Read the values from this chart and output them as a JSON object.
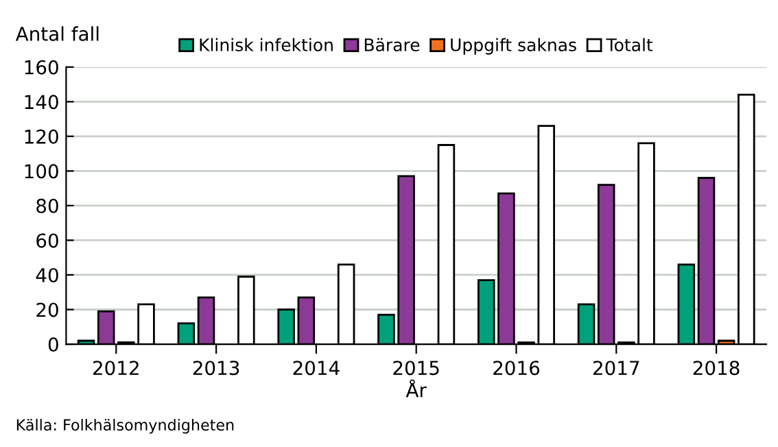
{
  "chart_data": {
    "type": "bar",
    "ylabel": "Antal fall",
    "xlabel": "År",
    "categories": [
      "2012",
      "2013",
      "2014",
      "2015",
      "2016",
      "2017",
      "2018"
    ],
    "series": [
      {
        "name": "Klinisk infektion",
        "color": "#00a07a",
        "values": [
          2,
          12,
          20,
          17,
          37,
          23,
          46
        ]
      },
      {
        "name": "Bärare",
        "color": "#8b3a96",
        "values": [
          19,
          27,
          27,
          97,
          87,
          92,
          96
        ]
      },
      {
        "name": "Uppgift saknas",
        "color": "#f07020",
        "values": [
          1,
          null,
          null,
          null,
          1,
          1,
          2
        ]
      },
      {
        "name": "Totalt",
        "color": "#ffffff",
        "values": [
          23,
          39,
          46,
          115,
          126,
          116,
          144
        ]
      }
    ],
    "ylim": [
      0,
      160
    ],
    "yticks": [
      0,
      20,
      40,
      60,
      80,
      100,
      120,
      140,
      160
    ],
    "grid": "y",
    "legend": "top",
    "annotations": [
      "Källa: Folkhälsomyndigheten"
    ]
  }
}
